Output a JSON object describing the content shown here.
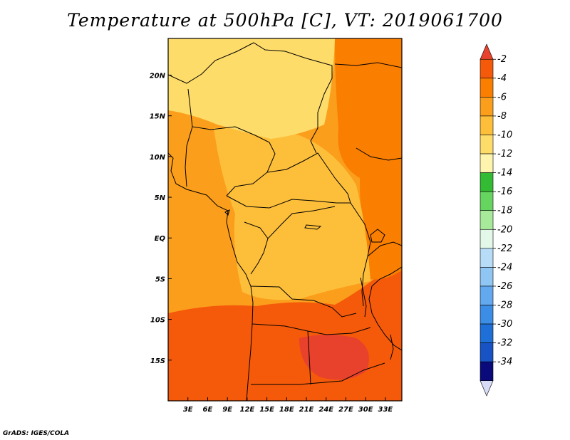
{
  "title": "Temperature at 500hPa [C], VT: 2019061700",
  "credit": "GrADS: IGES/COLA",
  "map": {
    "lon_range": [
      0,
      35.5
    ],
    "lat_range": [
      -20,
      24.5
    ],
    "lon_ticks": [
      {
        "value": 3,
        "label": "3E"
      },
      {
        "value": 6,
        "label": "6E"
      },
      {
        "value": 9,
        "label": "9E"
      },
      {
        "value": 12,
        "label": "12E"
      },
      {
        "value": 15,
        "label": "15E"
      },
      {
        "value": 18,
        "label": "18E"
      },
      {
        "value": 21,
        "label": "21E"
      },
      {
        "value": 24,
        "label": "24E"
      },
      {
        "value": 27,
        "label": "27E"
      },
      {
        "value": 30,
        "label": "30E"
      },
      {
        "value": 33,
        "label": "33E"
      }
    ],
    "lat_ticks": [
      {
        "value": 20,
        "label": "20N"
      },
      {
        "value": 15,
        "label": "15N"
      },
      {
        "value": 10,
        "label": "10N"
      },
      {
        "value": 5,
        "label": "5N"
      },
      {
        "value": 0,
        "label": "EQ"
      },
      {
        "value": -5,
        "label": "5S"
      },
      {
        "value": -10,
        "label": "10S"
      },
      {
        "value": -15,
        "label": "15S"
      }
    ]
  },
  "colorbar": {
    "levels": [
      {
        "color": "#e8412c",
        "label": "-2"
      },
      {
        "color": "#f55a0a",
        "label": "-4"
      },
      {
        "color": "#fa7e00",
        "label": "-6"
      },
      {
        "color": "#fb9e1c",
        "label": "-8"
      },
      {
        "color": "#fdbf3a",
        "label": "-10"
      },
      {
        "color": "#fedc6a",
        "label": "-12"
      },
      {
        "color": "#fff4ae",
        "label": "-14"
      },
      {
        "color": "#33bb33",
        "label": "-16"
      },
      {
        "color": "#66d55f",
        "label": "-18"
      },
      {
        "color": "#a7eb9a",
        "label": "-20"
      },
      {
        "color": "#e3f8e8",
        "label": "-22"
      },
      {
        "color": "#b7dcf7",
        "label": "-24"
      },
      {
        "color": "#90c6f3",
        "label": "-26"
      },
      {
        "color": "#62a9ef",
        "label": "-28"
      },
      {
        "color": "#3b8de5",
        "label": "-30"
      },
      {
        "color": "#1f6fd9",
        "label": "-32"
      },
      {
        "color": "#1753c5",
        "label": "-34"
      },
      {
        "color": "#0a0a7a",
        "label": ""
      },
      {
        "color": "#d6dcf6",
        "label": ""
      }
    ]
  },
  "field": {
    "color_north": "#fedc6a",
    "color_center": "#fdbf3a",
    "color_west": "#fb9e1c",
    "color_east": "#fa7e00",
    "color_south": "#f55a0a",
    "color_core": "#e8412c"
  }
}
